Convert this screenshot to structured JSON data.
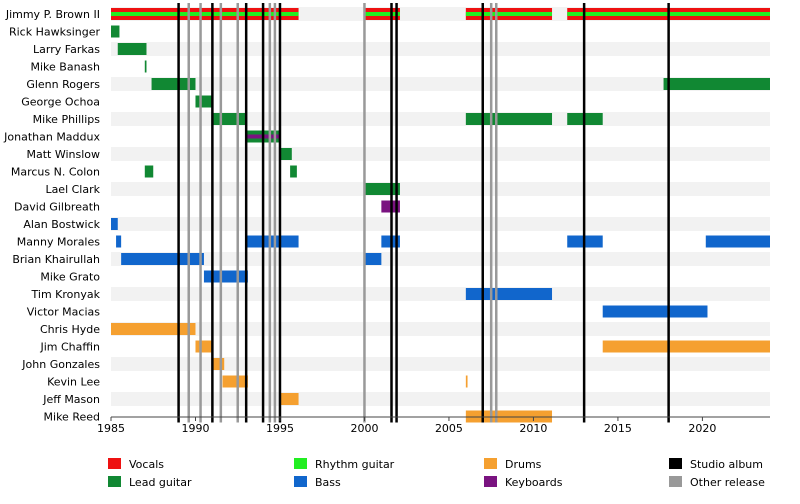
{
  "chart_data": {
    "type": "timeline",
    "xlim": [
      1985,
      2024
    ],
    "x_ticks": [
      1985,
      1990,
      1995,
      2000,
      2005,
      2010,
      2015,
      2020
    ],
    "members": [
      "Jimmy P. Brown II",
      "Rick Hawksinger",
      "Larry Farkas",
      "Mike Banash",
      "Glenn Rogers",
      "George Ochoa",
      "Mike Phillips",
      "Jonathan Maddux",
      "Matt Winslow",
      "Marcus N. Colon",
      "Lael Clark",
      "David Gilbreath",
      "Alan Bostwick",
      "Manny Morales",
      "Brian Khairullah",
      "Mike Grato",
      "Tim Kronyak",
      "Victor Macias",
      "Chris Hyde",
      "Jim Chaffin",
      "John Gonzales",
      "Kevin Lee",
      "Jeff Mason",
      "Mike Reed"
    ],
    "colors": {
      "Vocals": "#ee1111",
      "Lead guitar": "#118833",
      "Rhythm guitar": "#22ee22",
      "Bass": "#1166cc",
      "Drums": "#f5a030",
      "Keyboards": "#7a1380",
      "Studio album": "#000000",
      "Other release": "#999999"
    },
    "stints": [
      {
        "member": "Jimmy P. Brown II",
        "role": "Vocals",
        "start": 1985,
        "end": 1996.1
      },
      {
        "member": "Jimmy P. Brown II",
        "role": "Vocals",
        "start": 2000,
        "end": 2002.1
      },
      {
        "member": "Jimmy P. Brown II",
        "role": "Vocals",
        "start": 2006,
        "end": 2011.1
      },
      {
        "member": "Jimmy P. Brown II",
        "role": "Vocals",
        "start": 2012,
        "end": 2024
      },
      {
        "member": "Jimmy P. Brown II",
        "role": "Rhythm guitar",
        "start": 1985,
        "end": 1996.1
      },
      {
        "member": "Jimmy P. Brown II",
        "role": "Rhythm guitar",
        "start": 2000,
        "end": 2002.1
      },
      {
        "member": "Jimmy P. Brown II",
        "role": "Rhythm guitar",
        "start": 2006,
        "end": 2011.1
      },
      {
        "member": "Jimmy P. Brown II",
        "role": "Rhythm guitar",
        "start": 2012,
        "end": 2024
      },
      {
        "member": "Rick Hawksinger",
        "role": "Lead guitar",
        "start": 1985,
        "end": 1985.5
      },
      {
        "member": "Larry Farkas",
        "role": "Lead guitar",
        "start": 1985.4,
        "end": 1987.1
      },
      {
        "member": "Mike Banash",
        "role": "Lead guitar",
        "start": 1987,
        "end": 1987.1
      },
      {
        "member": "Glenn Rogers",
        "role": "Lead guitar",
        "start": 1987.4,
        "end": 1990
      },
      {
        "member": "Glenn Rogers",
        "role": "Lead guitar",
        "start": 2017.7,
        "end": 2024
      },
      {
        "member": "George Ochoa",
        "role": "Lead guitar",
        "start": 1990,
        "end": 1991
      },
      {
        "member": "Mike Phillips",
        "role": "Lead guitar",
        "start": 1991,
        "end": 1993
      },
      {
        "member": "Mike Phillips",
        "role": "Lead guitar",
        "start": 2006,
        "end": 2011.1
      },
      {
        "member": "Mike Phillips",
        "role": "Lead guitar",
        "start": 2012,
        "end": 2014.1
      },
      {
        "member": "Jonathan Maddux",
        "role": "Lead guitar",
        "start": 1993,
        "end": 1995
      },
      {
        "member": "Jonathan Maddux",
        "role": "Keyboards",
        "start": 1993,
        "end": 1995
      },
      {
        "member": "Matt Winslow",
        "role": "Lead guitar",
        "start": 1995,
        "end": 1995.7
      },
      {
        "member": "Marcus N. Colon",
        "role": "Lead guitar",
        "start": 1987,
        "end": 1987.5
      },
      {
        "member": "Marcus N. Colon",
        "role": "Lead guitar",
        "start": 1995.6,
        "end": 1996
      },
      {
        "member": "Lael Clark",
        "role": "Lead guitar",
        "start": 2000,
        "end": 2002.1
      },
      {
        "member": "David Gilbreath",
        "role": "Keyboards",
        "start": 2001,
        "end": 2002.1
      },
      {
        "member": "Alan Bostwick",
        "role": "Bass",
        "start": 1985,
        "end": 1985.4
      },
      {
        "member": "Manny Morales",
        "role": "Bass",
        "start": 1985.3,
        "end": 1985.6
      },
      {
        "member": "Manny Morales",
        "role": "Bass",
        "start": 1993,
        "end": 1996.1
      },
      {
        "member": "Manny Morales",
        "role": "Bass",
        "start": 2001,
        "end": 2002.1
      },
      {
        "member": "Manny Morales",
        "role": "Bass",
        "start": 2012,
        "end": 2014.1
      },
      {
        "member": "Manny Morales",
        "role": "Bass",
        "start": 2020.2,
        "end": 2024
      },
      {
        "member": "Brian Khairullah",
        "role": "Bass",
        "start": 1985.6,
        "end": 1990.5
      },
      {
        "member": "Brian Khairullah",
        "role": "Bass",
        "start": 2000,
        "end": 2001
      },
      {
        "member": "Mike Grato",
        "role": "Bass",
        "start": 1990.5,
        "end": 1993.1
      },
      {
        "member": "Tim Kronyak",
        "role": "Bass",
        "start": 2006,
        "end": 2011.1
      },
      {
        "member": "Victor Macias",
        "role": "Bass",
        "start": 2014.1,
        "end": 2020.3
      },
      {
        "member": "Chris Hyde",
        "role": "Drums",
        "start": 1985,
        "end": 1990
      },
      {
        "member": "Jim Chaffin",
        "role": "Drums",
        "start": 1990,
        "end": 1991
      },
      {
        "member": "Jim Chaffin",
        "role": "Drums",
        "start": 2014.1,
        "end": 2024
      },
      {
        "member": "John Gonzales",
        "role": "Drums",
        "start": 1991,
        "end": 1991.7
      },
      {
        "member": "Kevin Lee",
        "role": "Drums",
        "start": 1991.6,
        "end": 1993.1
      },
      {
        "member": "Kevin Lee",
        "role": "Drums",
        "start": 2006,
        "end": 2006.1
      },
      {
        "member": "Jeff Mason",
        "role": "Drums",
        "start": 1995,
        "end": 1996.1
      },
      {
        "member": "Mike Reed",
        "role": "Drums",
        "start": 2006,
        "end": 2011.1
      }
    ],
    "studio_albums": [
      1989,
      1991,
      1993,
      1994,
      1995,
      2001.6,
      2001.9,
      2007,
      2013,
      2018
    ],
    "other_releases": [
      1989.6,
      1990.3,
      1991.5,
      1992.5,
      1994.4,
      1994.7,
      2000,
      2007.5,
      2007.8
    ],
    "legend": [
      "Vocals",
      "Rhythm guitar",
      "Drums",
      "Studio album",
      "Lead guitar",
      "Bass",
      "Keyboards",
      "Other release"
    ]
  }
}
